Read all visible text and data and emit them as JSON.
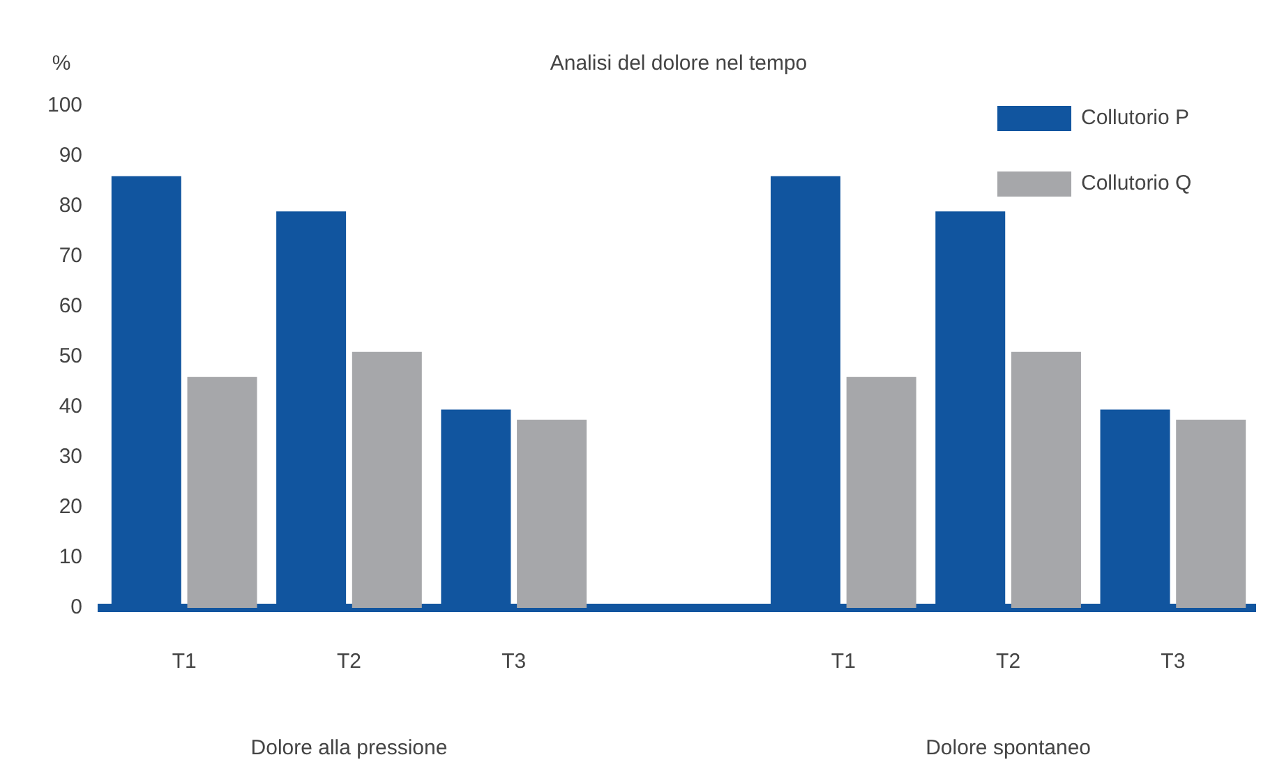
{
  "chart_data": {
    "type": "bar",
    "title": "Analisi del dolore nel tempo",
    "ylabel": "%",
    "categories": [
      "T1",
      "T2",
      "T3",
      null,
      "T1",
      "T2",
      "T3"
    ],
    "series": [
      {
        "name": "Collutorio P",
        "color": "#11559f",
        "values": [
          86,
          79,
          39.5,
          null,
          86,
          79,
          39.5
        ]
      },
      {
        "name": "Collutorio Q",
        "color": "#a6a7aa",
        "values": [
          46,
          51,
          37.5,
          null,
          46,
          51,
          37.5
        ]
      }
    ],
    "ylim": [
      0,
      100
    ],
    "yticks": [
      0,
      10,
      20,
      30,
      40,
      50,
      60,
      70,
      80,
      90,
      100
    ],
    "grid": false,
    "legend": "top right",
    "annotations": [
      "Dolore alla pressione",
      "Dolore spontaneo"
    ]
  }
}
